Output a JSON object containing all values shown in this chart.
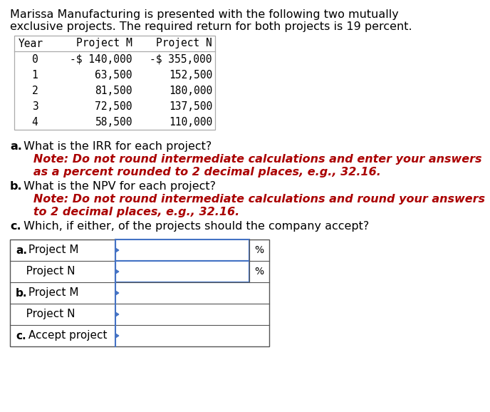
{
  "title_line1": "Marissa Manufacturing is presented with the following two mutually",
  "title_line2": "exclusive projects. The required return for both projects is 19 percent.",
  "table_headers": [
    "Year",
    "Project M",
    "Project N"
  ],
  "table_rows": [
    [
      "0",
      "-$ 140,000",
      "-$ 355,000"
    ],
    [
      "1",
      "63,500",
      "152,500"
    ],
    [
      "2",
      "81,500",
      "180,000"
    ],
    [
      "3",
      "72,500",
      "137,500"
    ],
    [
      "4",
      "58,500",
      "110,000"
    ]
  ],
  "question_a_black1": "a.",
  "question_a_black2": " What is the IRR for each project?",
  "question_a_red_line1": "   Note: Do not round intermediate calculations and enter your answers",
  "question_a_red_line2": "   as a percent rounded to 2 decimal places, e.g., 32.16.",
  "question_b_black1": "b.",
  "question_b_black2": " What is the NPV for each project?",
  "question_b_red_line1": "   Note: Do not round intermediate calculations and round your answers",
  "question_b_red_line2": "   to 2 decimal places, e.g., 32.16.",
  "question_c_black1": "c.",
  "question_c_black2": " Which, if either, of the projects should the company accept?",
  "answer_rows": [
    {
      "label_bold": "a.",
      "label_rest": " Project M",
      "has_percent": true
    },
    {
      "label_bold": "",
      "label_rest": "   Project N",
      "has_percent": true
    },
    {
      "label_bold": "b.",
      "label_rest": " Project M",
      "has_percent": false
    },
    {
      "label_bold": "",
      "label_rest": "   Project N",
      "has_percent": false
    },
    {
      "label_bold": "c.",
      "label_rest": " Accept project",
      "has_percent": false
    }
  ],
  "bg_color": "#ffffff",
  "table_border_color": "#aaaaaa",
  "blue_color": "#4472c4",
  "red_color": "#aa0000",
  "black_color": "#000000",
  "gray_color": "#555555"
}
